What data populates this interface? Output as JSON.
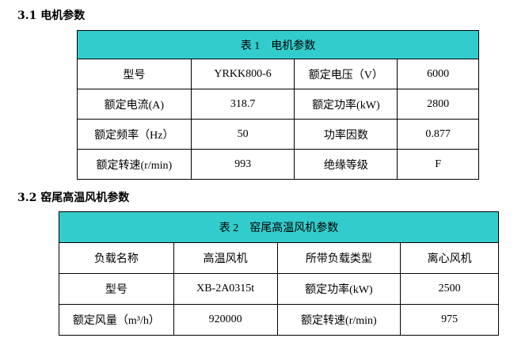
{
  "section1": {
    "heading": "3.1 电机参数",
    "title": "表 1　电机参数",
    "rows": [
      [
        "型号",
        "YRKK800-6",
        "额定电压（V）",
        "6000"
      ],
      [
        "额定电流(A)",
        "318.7",
        "额定功率(kW)",
        "2800"
      ],
      [
        "额定频率（Hz）",
        "50",
        "功率因数",
        "0.877"
      ],
      [
        "额定转速(r/min)",
        "993",
        "绝缘等级",
        "F"
      ]
    ]
  },
  "section2": {
    "heading": "3.2 窑尾高温风机参数",
    "title": "表 2　窑尾高温风机参数",
    "rows": [
      [
        "负载名称",
        "高温风机",
        "所带负载类型",
        "离心风机"
      ],
      [
        "型号",
        "XB-2A0315t",
        "额定功率(kW)",
        "2500"
      ],
      [
        "额定风量（m³/h）",
        "920000",
        "额定转速(r/min)",
        "975"
      ]
    ]
  },
  "colors": {
    "header_bg": "#33cccc"
  }
}
